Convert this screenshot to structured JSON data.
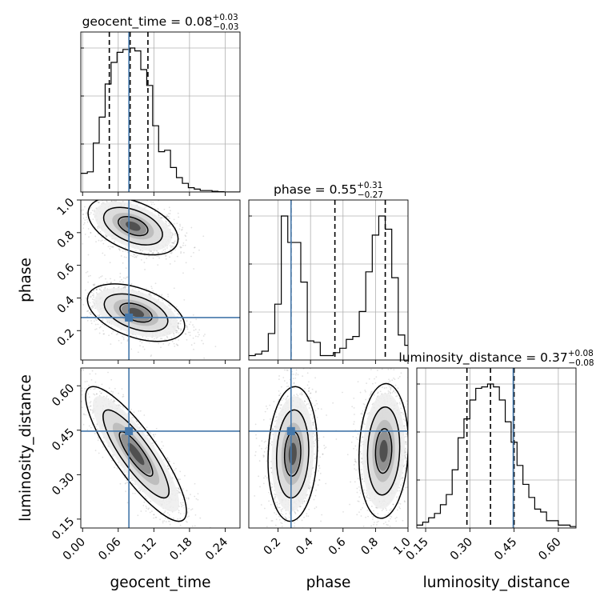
{
  "chart_data": {
    "type": "corner",
    "parameters": [
      {
        "name": "geocent_time",
        "label": "geocent_time",
        "range": [
          -0.003,
          0.265
        ],
        "ticks": [
          0.0,
          0.06,
          0.12,
          0.18,
          0.24
        ],
        "tick_labels": [
          "0.00",
          "0.06",
          "0.12",
          "0.18",
          "0.24"
        ],
        "truth": 0.078,
        "quantiles": [
          0.045,
          0.08,
          0.11
        ],
        "title": "geocent_time = 0.08",
        "title_upper": "+0.03",
        "title_lower": "−0.03"
      },
      {
        "name": "phase",
        "label": "phase",
        "range": [
          0.02,
          1.0
        ],
        "ticks": [
          0.2,
          0.4,
          0.6,
          0.8,
          1.0
        ],
        "tick_labels": [
          "0.2",
          "0.4",
          "0.6",
          "0.8",
          "1.0"
        ],
        "truth": 0.28,
        "quantiles": [
          0.28,
          0.55,
          0.86
        ],
        "title": "phase = 0.55",
        "title_upper": "+0.31",
        "title_lower": "−0.27"
      },
      {
        "name": "luminosity_distance",
        "label": "luminosity_distance",
        "range": [
          0.12,
          0.66
        ],
        "ticks": [
          0.15,
          0.3,
          0.45,
          0.6
        ],
        "tick_labels": [
          "0.15",
          "0.30",
          "0.45",
          "0.60"
        ],
        "truth": 0.447,
        "quantiles": [
          0.29,
          0.37,
          0.45
        ],
        "title": "luminosity_distance = 0.37",
        "title_upper": "+0.08",
        "title_lower": "−0.08"
      }
    ],
    "histograms": [
      {
        "parameter": "geocent_time",
        "bin_edges": [
          -0.003,
          0.008,
          0.018,
          0.028,
          0.038,
          0.048,
          0.058,
          0.068,
          0.078,
          0.088,
          0.098,
          0.108,
          0.118,
          0.128,
          0.138,
          0.148,
          0.158,
          0.168,
          0.178,
          0.188,
          0.198,
          0.208,
          0.218,
          0.228,
          0.238,
          0.248,
          0.258,
          0.265
        ],
        "counts": [
          0.13,
          0.14,
          0.34,
          0.52,
          0.75,
          0.9,
          0.97,
          0.99,
          1.0,
          0.98,
          0.85,
          0.74,
          0.46,
          0.28,
          0.29,
          0.17,
          0.1,
          0.06,
          0.03,
          0.02,
          0.01,
          0.01,
          0.005,
          0.002,
          0.0,
          0.0,
          0.0
        ]
      },
      {
        "parameter": "phase",
        "bin_edges": [
          0.02,
          0.06,
          0.1,
          0.14,
          0.18,
          0.22,
          0.26,
          0.3,
          0.34,
          0.38,
          0.42,
          0.46,
          0.5,
          0.54,
          0.58,
          0.62,
          0.66,
          0.7,
          0.74,
          0.78,
          0.82,
          0.86,
          0.9,
          0.94,
          0.98,
          1.0
        ],
        "counts": [
          0.03,
          0.04,
          0.06,
          0.18,
          0.38,
          0.98,
          0.8,
          0.8,
          0.53,
          0.13,
          0.12,
          0.03,
          0.03,
          0.05,
          0.08,
          0.14,
          0.16,
          0.33,
          0.6,
          0.85,
          0.98,
          0.89,
          0.56,
          0.17,
          0.1
        ]
      },
      {
        "parameter": "luminosity_distance",
        "bin_edges": [
          0.12,
          0.14,
          0.16,
          0.18,
          0.2,
          0.22,
          0.24,
          0.26,
          0.28,
          0.3,
          0.32,
          0.34,
          0.36,
          0.38,
          0.4,
          0.42,
          0.44,
          0.46,
          0.48,
          0.5,
          0.52,
          0.54,
          0.56,
          0.58,
          0.6,
          0.62,
          0.64,
          0.66
        ],
        "counts": [
          0.02,
          0.04,
          0.07,
          0.1,
          0.16,
          0.23,
          0.4,
          0.62,
          0.75,
          0.88,
          0.96,
          0.97,
          0.99,
          0.97,
          0.88,
          0.73,
          0.59,
          0.43,
          0.3,
          0.21,
          0.13,
          0.11,
          0.05,
          0.05,
          0.02,
          0.02,
          0.01
        ]
      }
    ],
    "joint_distributions": [
      {
        "x": "geocent_time",
        "y": "phase",
        "modes": [
          {
            "center": [
              0.085,
              0.84
            ],
            "sx": 0.025,
            "sy": 0.058,
            "rho": -0.45,
            "weight": 1.0
          },
          {
            "center": [
              0.09,
              0.31
            ],
            "sx": 0.027,
            "sy": 0.058,
            "rho": -0.45,
            "weight": 0.95
          }
        ]
      },
      {
        "x": "geocent_time",
        "y": "luminosity_distance",
        "modes": [
          {
            "center": [
              0.09,
              0.37
            ],
            "sx": 0.028,
            "sy": 0.075,
            "rho": -0.85,
            "weight": 1.0
          }
        ]
      },
      {
        "x": "phase",
        "y": "luminosity_distance",
        "modes": [
          {
            "center": [
              0.29,
              0.37
            ],
            "sx": 0.05,
            "sy": 0.075,
            "rho": 0.1,
            "weight": 1.0
          },
          {
            "center": [
              0.85,
              0.38
            ],
            "sx": 0.05,
            "sy": 0.075,
            "rho": 0.1,
            "weight": 1.0
          }
        ]
      }
    ],
    "contour_levels": [
      "39%",
      "86%",
      "99%"
    ],
    "truth_color": "#4477aa",
    "grid": true
  }
}
